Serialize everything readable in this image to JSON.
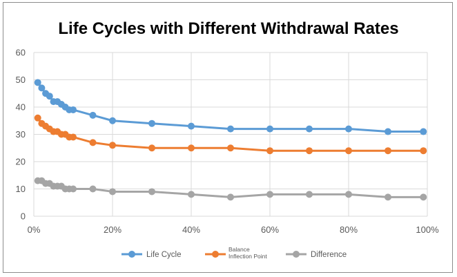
{
  "chart_data": {
    "type": "line",
    "title": "Life Cycles with Different Withdrawal Rates",
    "xlabel": "",
    "ylabel": "",
    "x_tick_labels": [
      "0%",
      "20%",
      "40%",
      "60%",
      "80%",
      "100%"
    ],
    "y_tick_labels": [
      "0",
      "10",
      "20",
      "30",
      "40",
      "50",
      "60"
    ],
    "xlim": [
      0,
      100
    ],
    "ylim": [
      0,
      60
    ],
    "x_unit": "%",
    "grid": true,
    "legend_position": "bottom",
    "x": [
      1,
      2,
      3,
      4,
      5,
      6,
      7,
      8,
      9,
      10,
      15,
      20,
      30,
      40,
      50,
      60,
      70,
      80,
      90,
      99
    ],
    "series": [
      {
        "name": "Life Cycle",
        "color": "#5b9bd5",
        "values": [
          49,
          47,
          45,
          44,
          42,
          42,
          41,
          40,
          39,
          39,
          37,
          35,
          34,
          33,
          32,
          32,
          32,
          32,
          31,
          31
        ]
      },
      {
        "name": "Balance Inflection Point",
        "name_lines": [
          "Balance",
          "Inflection Point"
        ],
        "color": "#ed7d31",
        "values": [
          36,
          34,
          33,
          32,
          31,
          31,
          30,
          30,
          29,
          29,
          27,
          26,
          25,
          25,
          25,
          24,
          24,
          24,
          24,
          24
        ]
      },
      {
        "name": "Difference",
        "color": "#a5a5a5",
        "values": [
          13,
          13,
          12,
          12,
          11,
          11,
          11,
          10,
          10,
          10,
          10,
          9,
          9,
          8,
          7,
          8,
          8,
          8,
          7,
          7
        ]
      }
    ]
  }
}
